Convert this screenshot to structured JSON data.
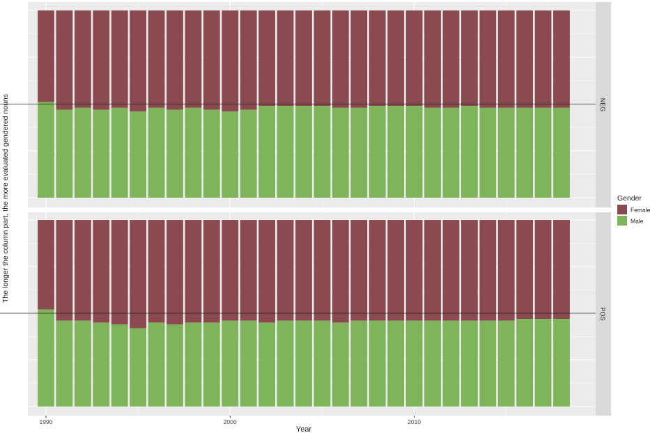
{
  "chart_data": {
    "type": "bar",
    "stacked": true,
    "normalized": true,
    "ylabel": "The longer the column part, the more evaluated gendered nouns",
    "xlabel": "Year",
    "x_ticks": [
      "1990",
      "2000",
      "2010"
    ],
    "legend": {
      "title": "Gender",
      "position": "right",
      "entries": [
        {
          "key": "female",
          "label": "Female",
          "color": "#8B4A4F"
        },
        {
          "key": "male",
          "label": "Male",
          "color": "#7EB55A"
        }
      ]
    },
    "categories": [
      1990,
      1991,
      1992,
      1993,
      1994,
      1995,
      1996,
      1997,
      1998,
      1999,
      2000,
      2001,
      2002,
      2003,
      2004,
      2005,
      2006,
      2007,
      2008,
      2009,
      2010,
      2011,
      2012,
      2013,
      2014,
      2015,
      2016,
      2017,
      2018
    ],
    "reference_line": 0.5,
    "panels": [
      {
        "label": "NEG",
        "male_share": [
          0.51,
          0.47,
          0.48,
          0.47,
          0.48,
          0.46,
          0.48,
          0.47,
          0.48,
          0.47,
          0.46,
          0.47,
          0.49,
          0.49,
          0.49,
          0.49,
          0.48,
          0.48,
          0.49,
          0.49,
          0.49,
          0.48,
          0.48,
          0.49,
          0.48,
          0.48,
          0.48,
          0.48,
          0.48
        ]
      },
      {
        "label": "POS",
        "male_share": [
          0.52,
          0.46,
          0.46,
          0.45,
          0.44,
          0.42,
          0.45,
          0.44,
          0.45,
          0.45,
          0.46,
          0.46,
          0.45,
          0.46,
          0.46,
          0.46,
          0.45,
          0.46,
          0.46,
          0.46,
          0.46,
          0.46,
          0.46,
          0.46,
          0.46,
          0.46,
          0.47,
          0.47,
          0.47
        ]
      }
    ],
    "grid": true
  }
}
